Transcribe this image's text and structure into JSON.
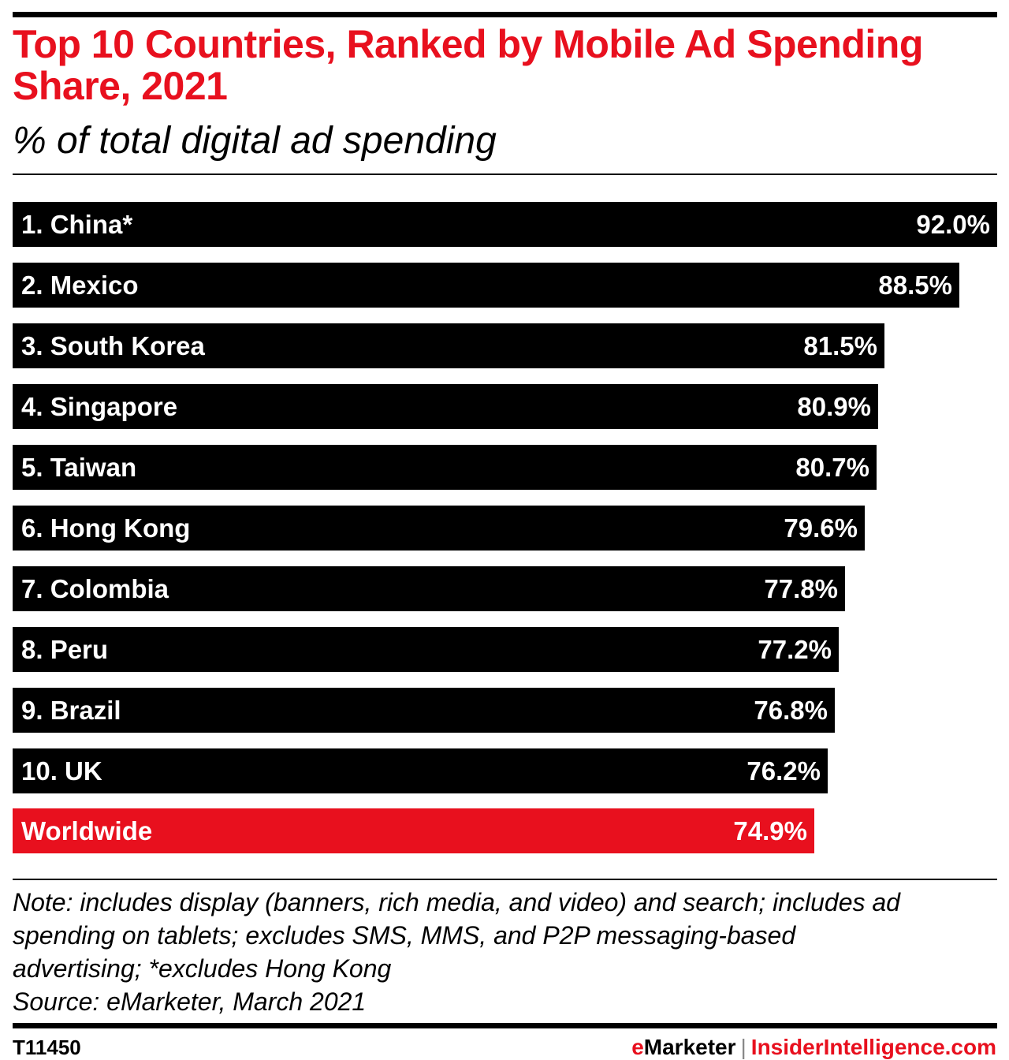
{
  "colors": {
    "accent": "#e8101e",
    "bar": "#000000",
    "text": "#000000"
  },
  "chart_data": {
    "type": "bar",
    "orientation": "horizontal",
    "title": "Top 10 Countries, Ranked by Mobile Ad Spending Share, 2021",
    "subtitle": "% of total digital ad spending",
    "categories": [
      "1. China*",
      "2. Mexico",
      "3. South Korea",
      "4. Singapore",
      "5. Taiwan",
      "6. Hong Kong",
      "7. Colombia",
      "8. Peru",
      "9. Brazil",
      "10. UK",
      "Worldwide"
    ],
    "values": [
      92.0,
      88.5,
      81.5,
      80.9,
      80.7,
      79.6,
      77.8,
      77.2,
      76.8,
      76.2,
      74.9
    ],
    "value_labels": [
      "92.0%",
      "88.5%",
      "81.5%",
      "80.9%",
      "80.7%",
      "79.6%",
      "77.8%",
      "77.2%",
      "76.8%",
      "76.2%",
      "74.9%"
    ],
    "highlight": "Worldwide",
    "xlim": [
      0,
      92.0
    ],
    "grid": false
  },
  "note": [
    "Note: includes display (banners, rich media, and video) and search; includes ad",
    "spending on tablets; excludes SMS, MMS, and P2P messaging-based",
    "advertising; *excludes Hong Kong",
    "Source: eMarketer, March 2021"
  ],
  "footer": {
    "chart_id": "T11450",
    "brand": "eMarketer",
    "separator": "|",
    "site": "InsiderIntelligence.com"
  }
}
